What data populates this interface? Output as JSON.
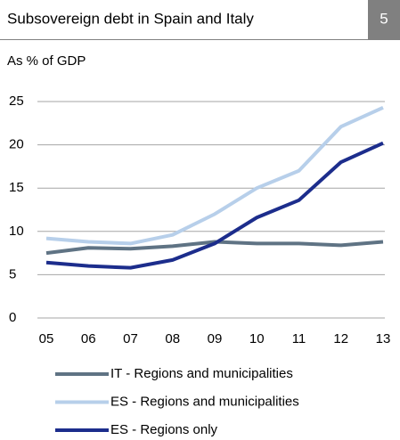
{
  "header": {
    "badge": "5"
  },
  "chart_data": {
    "type": "line",
    "title": "Subsovereign debt in Spain and Italy",
    "subtitle": "As % of GDP",
    "categories": [
      "05",
      "06",
      "07",
      "08",
      "09",
      "10",
      "11",
      "12",
      "13"
    ],
    "series": [
      {
        "name": "IT - Regions and municipalities",
        "color": "#5f7384",
        "values": [
          7.5,
          8.1,
          8.0,
          8.3,
          8.8,
          8.6,
          8.6,
          8.4,
          8.8
        ]
      },
      {
        "name": "ES - Regions and municipalities",
        "color": "#b7cfea",
        "values": [
          9.2,
          8.8,
          8.6,
          9.6,
          12.0,
          15.0,
          17.0,
          22.1,
          24.3
        ]
      },
      {
        "name": "ES - Regions only",
        "color": "#1c2d8c",
        "values": [
          6.4,
          6.0,
          5.8,
          6.7,
          8.6,
          11.6,
          13.6,
          18.0,
          20.2
        ]
      }
    ],
    "ylim": [
      0,
      25
    ],
    "yticks": [
      0,
      5,
      10,
      15,
      20,
      25
    ],
    "grid": true,
    "legend": "bottom"
  }
}
